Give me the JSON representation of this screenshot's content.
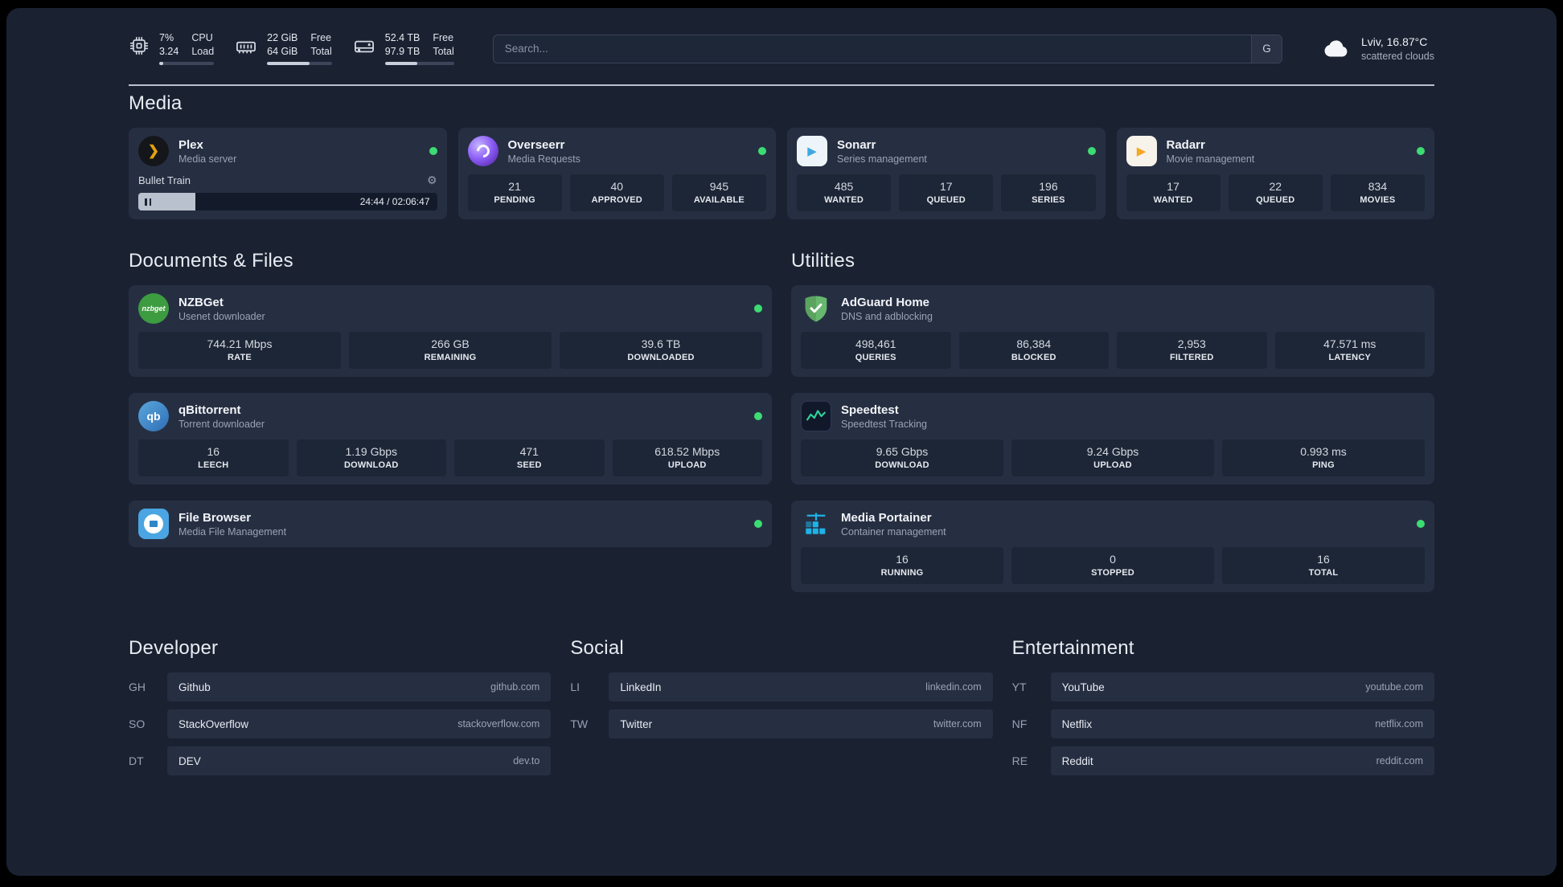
{
  "topbar": {
    "cpu": {
      "v1": "7%",
      "l1": "CPU",
      "v2": "3.24",
      "l2": "Load",
      "pct": 7
    },
    "ram": {
      "v1": "22 GiB",
      "l1": "Free",
      "v2": "64 GiB",
      "l2": "Total",
      "pct": 66
    },
    "disk": {
      "v1": "52.4 TB",
      "l1": "Free",
      "v2": "97.9 TB",
      "l2": "Total",
      "pct": 47
    },
    "search": {
      "placeholder": "Search...",
      "button": "G"
    },
    "weather": {
      "location": "Lviv, 16.87°C",
      "condition": "scattered clouds"
    }
  },
  "sections": {
    "media": {
      "title": "Media"
    },
    "documents": {
      "title": "Documents & Files"
    },
    "utilities": {
      "title": "Utilities"
    },
    "developer": {
      "title": "Developer"
    },
    "social": {
      "title": "Social"
    },
    "entertainment": {
      "title": "Entertainment"
    }
  },
  "icons": {
    "plex_glyph": "❯",
    "play_glyph": "▶",
    "gear_glyph": "⚙"
  },
  "apps": {
    "plex": {
      "name": "Plex",
      "desc": "Media server",
      "now_playing": "Bullet Train",
      "time": "24:44 / 02:06:47",
      "progress_pct": 19
    },
    "overseerr": {
      "name": "Overseerr",
      "desc": "Media Requests",
      "stats": [
        {
          "v": "21",
          "l": "PENDING"
        },
        {
          "v": "40",
          "l": "APPROVED"
        },
        {
          "v": "945",
          "l": "AVAILABLE"
        }
      ]
    },
    "sonarr": {
      "name": "Sonarr",
      "desc": "Series management",
      "stats": [
        {
          "v": "485",
          "l": "WANTED"
        },
        {
          "v": "17",
          "l": "QUEUED"
        },
        {
          "v": "196",
          "l": "SERIES"
        }
      ]
    },
    "radarr": {
      "name": "Radarr",
      "desc": "Movie management",
      "stats": [
        {
          "v": "17",
          "l": "WANTED"
        },
        {
          "v": "22",
          "l": "QUEUED"
        },
        {
          "v": "834",
          "l": "MOVIES"
        }
      ]
    },
    "nzbget": {
      "name": "NZBGet",
      "desc": "Usenet downloader",
      "icon_text": "nzbget",
      "stats": [
        {
          "v": "744.21 Mbps",
          "l": "RATE"
        },
        {
          "v": "266 GB",
          "l": "REMAINING"
        },
        {
          "v": "39.6 TB",
          "l": "DOWNLOADED"
        }
      ]
    },
    "qbittorrent": {
      "name": "qBittorrent",
      "desc": "Torrent downloader",
      "icon_text": "qb",
      "stats": [
        {
          "v": "16",
          "l": "LEECH"
        },
        {
          "v": "1.19 Gbps",
          "l": "DOWNLOAD"
        },
        {
          "v": "471",
          "l": "SEED"
        },
        {
          "v": "618.52 Mbps",
          "l": "UPLOAD"
        }
      ]
    },
    "filebrowser": {
      "name": "File Browser",
      "desc": "Media File Management"
    },
    "adguard": {
      "name": "AdGuard Home",
      "desc": "DNS and adblocking",
      "stats": [
        {
          "v": "498,461",
          "l": "QUERIES"
        },
        {
          "v": "86,384",
          "l": "BLOCKED"
        },
        {
          "v": "2,953",
          "l": "FILTERED"
        },
        {
          "v": "47.571 ms",
          "l": "LATENCY"
        }
      ]
    },
    "speedtest": {
      "name": "Speedtest",
      "desc": "Speedtest Tracking",
      "stats": [
        {
          "v": "9.65 Gbps",
          "l": "DOWNLOAD"
        },
        {
          "v": "9.24 Gbps",
          "l": "UPLOAD"
        },
        {
          "v": "0.993 ms",
          "l": "PING"
        }
      ]
    },
    "portainer": {
      "name": "Media Portainer",
      "desc": "Container management",
      "stats": [
        {
          "v": "16",
          "l": "RUNNING"
        },
        {
          "v": "0",
          "l": "STOPPED"
        },
        {
          "v": "16",
          "l": "TOTAL"
        }
      ]
    }
  },
  "bookmarks": {
    "developer": [
      {
        "abbr": "GH",
        "name": "Github",
        "url": "github.com"
      },
      {
        "abbr": "SO",
        "name": "StackOverflow",
        "url": "stackoverflow.com"
      },
      {
        "abbr": "DT",
        "name": "DEV",
        "url": "dev.to"
      }
    ],
    "social": [
      {
        "abbr": "LI",
        "name": "LinkedIn",
        "url": "linkedin.com"
      },
      {
        "abbr": "TW",
        "name": "Twitter",
        "url": "twitter.com"
      }
    ],
    "entertainment": [
      {
        "abbr": "YT",
        "name": "YouTube",
        "url": "youtube.com"
      },
      {
        "abbr": "NF",
        "name": "Netflix",
        "url": "netflix.com"
      },
      {
        "abbr": "RE",
        "name": "Reddit",
        "url": "reddit.com"
      }
    ]
  },
  "colors": {
    "status_online": "#3ddc73",
    "plex_accent": "#e5a00d",
    "sonarr_accent": "#3fa9e0",
    "radarr_accent": "#f5a623",
    "nzbget_green": "#3d9c40",
    "qbittorrent_blue": "#2e6eb5",
    "filebrowser_blue": "#4ba5e2",
    "adguard_green": "#67b76f",
    "speedtest_green": "#2fd49c",
    "portainer_blue": "#1db3e8"
  }
}
